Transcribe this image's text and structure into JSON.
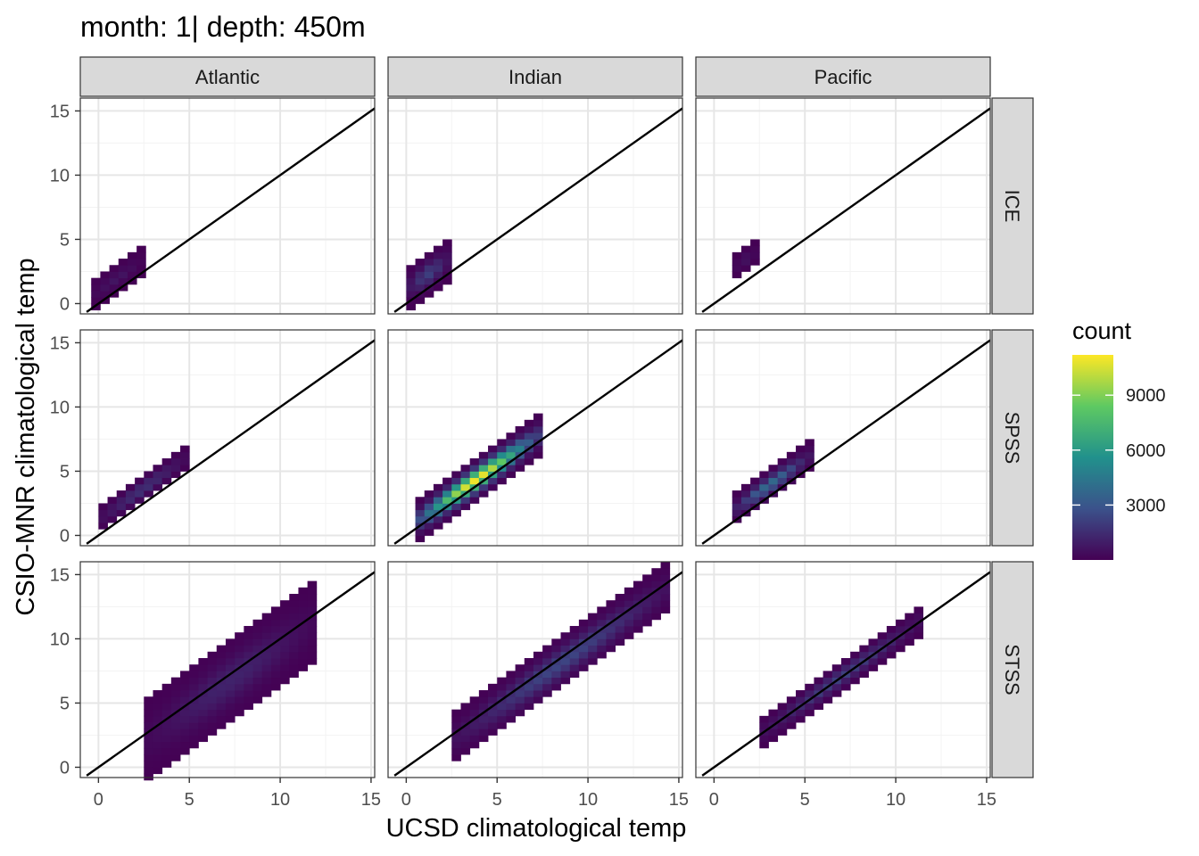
{
  "chart_data": {
    "type": "heatmap",
    "title": "month: 1| depth: 450m",
    "xlabel": "UCSD climatological temp",
    "ylabel": "CSIO-MNR climatological temp",
    "xlim": [
      -1,
      15.2
    ],
    "ylim": [
      -0.8,
      16
    ],
    "x_ticks": [
      0,
      5,
      10,
      15
    ],
    "y_ticks": [
      0,
      5,
      10,
      15
    ],
    "grid": true,
    "reference_line": "y = x",
    "bin_width": 0.5,
    "columns": [
      "Atlantic",
      "Indian",
      "Pacific"
    ],
    "rows": [
      "ICE",
      "SPSS",
      "STSS"
    ],
    "legend": {
      "title": "count",
      "position": "right",
      "range": [
        0,
        11200
      ],
      "breaks": [
        3000,
        6000,
        9000
      ],
      "breaks_text": [
        "3000",
        "6000",
        "9000"
      ]
    },
    "panels": [
      {
        "column": "Atlantic",
        "row": "ICE",
        "bands": [
          {
            "x": [
              -0.4,
              2.4
            ],
            "yc": 0.95,
            "h": 0.9,
            "peak": 700
          }
        ]
      },
      {
        "column": "Indian",
        "row": "ICE",
        "bands": [
          {
            "x": [
              0,
              2.4
            ],
            "yc": 1.1,
            "h": 1.4,
            "peak": 2200
          }
        ]
      },
      {
        "column": "Pacific",
        "row": "ICE",
        "bands": [
          {
            "x": [
              1,
              2.4
            ],
            "yc": 1.7,
            "h": 0.8,
            "peak": 600
          }
        ]
      },
      {
        "column": "Atlantic",
        "row": "SPSS",
        "bands": [
          {
            "x": [
              0,
              4.8
            ],
            "yc": 1.2,
            "h": 0.9,
            "peak": 1800
          }
        ]
      },
      {
        "column": "Indian",
        "row": "SPSS",
        "bands": [
          {
            "x": [
              0.5,
              7.2
            ],
            "yc": 0.5,
            "h": 1.3,
            "peak": 11200
          }
        ]
      },
      {
        "column": "Pacific",
        "row": "SPSS",
        "bands": [
          {
            "x": [
              1,
              5.2
            ],
            "yc": 0.9,
            "h": 1.0,
            "peak": 4000
          }
        ]
      },
      {
        "column": "Atlantic",
        "row": "STSS",
        "bands": [
          {
            "x": [
              2.5,
              12
            ],
            "yc": -0.5,
            "h": 2.8,
            "peak": 1200
          }
        ]
      },
      {
        "column": "Indian",
        "row": "STSS",
        "bands": [
          {
            "x": [
              2.5,
              14.5
            ],
            "yc": -0.4,
            "h": 1.8,
            "peak": 2400
          }
        ]
      },
      {
        "column": "Pacific",
        "row": "STSS",
        "bands": [
          {
            "x": [
              2.5,
              11.5
            ],
            "yc": 0.05,
            "h": 1.0,
            "peak": 2200
          }
        ]
      }
    ]
  }
}
